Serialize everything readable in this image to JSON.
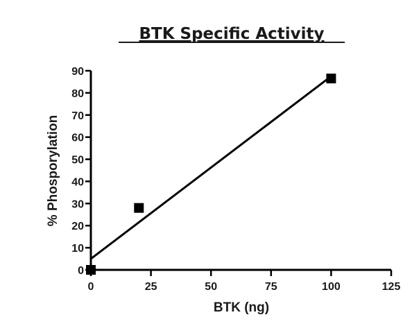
{
  "chart_data": {
    "type": "scatter",
    "title": "BTK Specific Activity",
    "xlabel": "BTK (ng)",
    "ylabel": "% Phosporylation",
    "xlim": [
      0,
      125
    ],
    "ylim": [
      0,
      90
    ],
    "xticks": [
      0,
      25,
      50,
      75,
      100,
      125
    ],
    "yticks": [
      0,
      10,
      20,
      30,
      40,
      50,
      60,
      70,
      80,
      90
    ],
    "grid": false,
    "series": [
      {
        "x": [
          0,
          20,
          100
        ],
        "y": [
          0,
          28,
          86.5
        ]
      }
    ],
    "fit_line": {
      "x": [
        0,
        100
      ],
      "y": [
        5,
        87.5
      ]
    },
    "colors": {
      "marker": "#000000",
      "line": "#000000",
      "axis": "#000000"
    }
  }
}
